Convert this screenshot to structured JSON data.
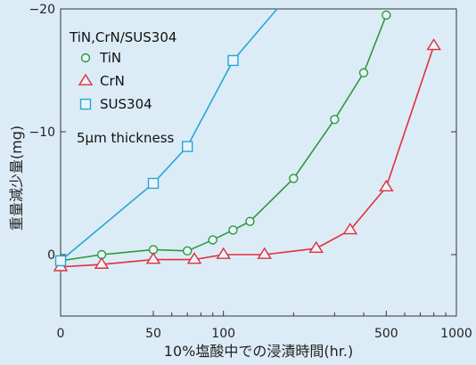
{
  "chart_data": {
    "type": "line",
    "legend_title": "TiN,CrN/SUS304",
    "note": "5μm thickness",
    "xlabel": "10%塩酸中での浸漬時間(hr.)",
    "ylabel": "重量減少量(mg)",
    "xscale": "log (origin labeled 0)",
    "xticks": [
      "0",
      "50",
      "100",
      "500",
      "1000"
    ],
    "yticks": [
      "0",
      "−10",
      "−20"
    ],
    "ylim": [
      -20,
      5
    ],
    "legend_position": "top-left",
    "series": [
      {
        "name": "TiN",
        "marker": "circle",
        "color": "#2e9a3a",
        "x": [
          20,
          30,
          50,
          70,
          90,
          110,
          130,
          200,
          300,
          400,
          500
        ],
        "y": [
          0.5,
          0,
          -0.4,
          -0.3,
          -1.2,
          -2.0,
          -2.7,
          -6.2,
          -11.0,
          -14.8,
          -19.5
        ]
      },
      {
        "name": "CrN",
        "marker": "triangle",
        "color": "#e0303c",
        "x": [
          20,
          30,
          50,
          75,
          100,
          150,
          250,
          350,
          500,
          800
        ],
        "y": [
          1.0,
          0.8,
          0.4,
          0.4,
          0,
          0,
          -0.5,
          -2.0,
          -5.5,
          -17.0
        ]
      },
      {
        "name": "SUS304",
        "marker": "square",
        "color": "#26a6d6",
        "x": [
          20,
          50,
          70,
          110,
          170
        ],
        "y": [
          0.5,
          -5.8,
          -8.8,
          -15.8,
          -20
        ]
      }
    ]
  }
}
